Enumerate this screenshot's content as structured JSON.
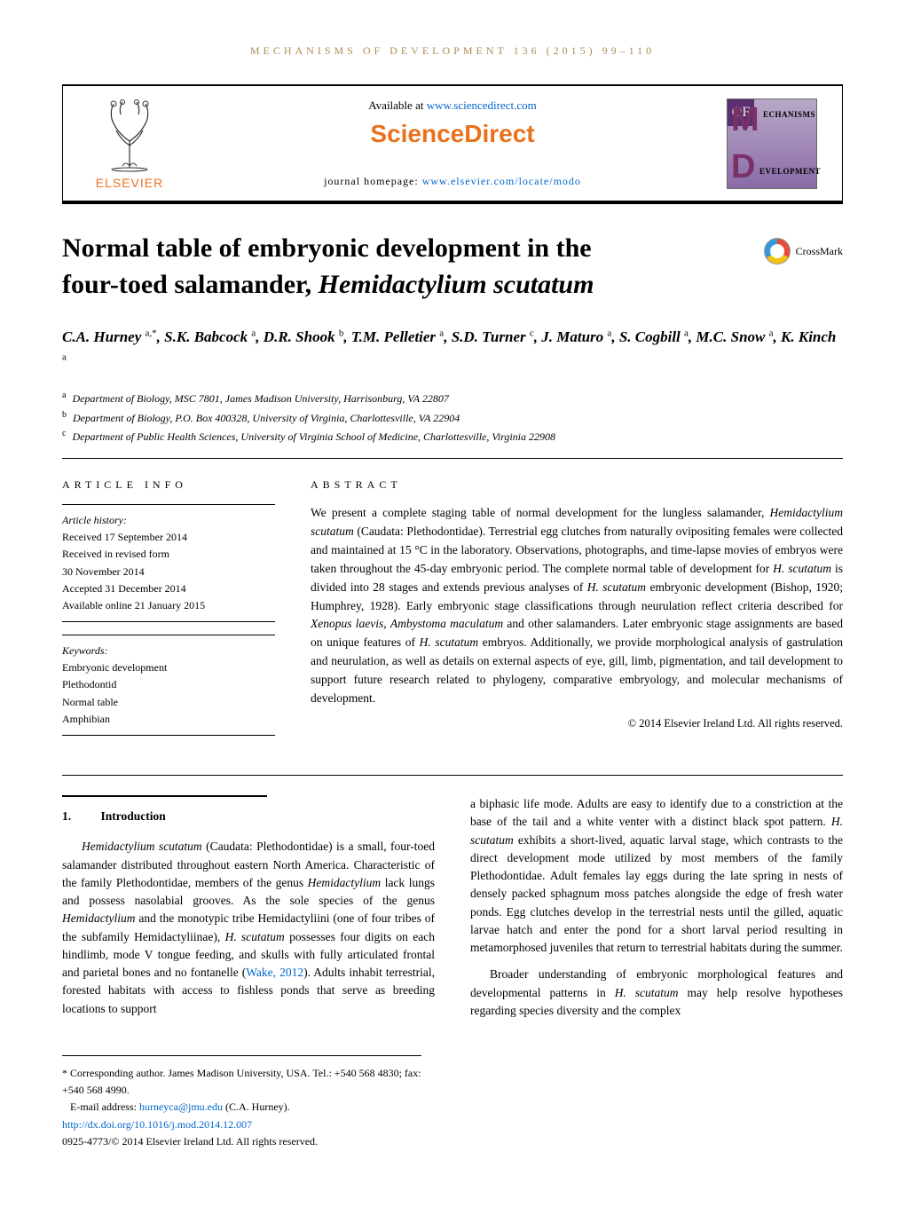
{
  "running_header": "MECHANISMS OF DEVELOPMENT 136 (2015) 99–110",
  "top_box": {
    "available_prefix": "Available at ",
    "available_link": "www.sciencedirect.com",
    "brand": "ScienceDirect",
    "homepage_prefix": "journal homepage: ",
    "homepage_link": "www.elsevier.com/locate/modo",
    "publisher_name": "ELSEVIER",
    "journal_words": {
      "m": "ECHANISMS",
      "o": "OF",
      "d": "EVELOPMENT"
    }
  },
  "title": {
    "line1": "Normal table of embryonic development in the",
    "line2_plain": "four-toed salamander, ",
    "line2_italic": "Hemidactylium scutatum"
  },
  "crossmark_label": "CrossMark",
  "authors_html": "C.A. Hurney <sup>a,*</sup>, S.K. Babcock <sup>a</sup>, D.R. Shook <sup>b</sup>, T.M. Pelletier <sup>a</sup>, S.D. Turner <sup>c</sup>, J. Maturo <sup>a</sup>, S. Cogbill <sup>a</sup>, M.C. Snow <sup>a</sup>, K. Kinch <sup>a</sup>",
  "affiliations": [
    {
      "sup": "a",
      "text": "Department of Biology, MSC 7801, James Madison University, Harrisonburg, VA 22807"
    },
    {
      "sup": "b",
      "text": "Department of Biology, P.O. Box 400328, University of Virginia, Charlottesville, VA 22904"
    },
    {
      "sup": "c",
      "text": "Department of Public Health Sciences, University of Virginia School of Medicine, Charlottesville, Virginia 22908"
    }
  ],
  "labels": {
    "article_info": "ARTICLE INFO",
    "abstract": "ABSTRACT"
  },
  "history": {
    "heading": "Article history:",
    "lines": [
      "Received 17 September 2014",
      "Received in revised form",
      "30 November 2014",
      "Accepted 31 December 2014",
      "Available online 21 January 2015"
    ]
  },
  "keywords": {
    "heading": "Keywords:",
    "items": [
      "Embryonic development",
      "Plethodontid",
      "Normal table",
      "Amphibian"
    ]
  },
  "abstract_text": "We present a complete staging table of normal development for the lungless salamander, Hemidactylium scutatum (Caudata: Plethodontidae). Terrestrial egg clutches from naturally ovipositing females were collected and maintained at 15 °C in the laboratory. Observations, photographs, and time-lapse movies of embryos were taken throughout the 45-day embryonic period. The complete normal table of development for H. scutatum is divided into 28 stages and extends previous analyses of H. scutatum embryonic development (Bishop, 1920; Humphrey, 1928). Early embryonic stage classifications through neurulation reflect criteria described for Xenopus laevis, Ambystoma maculatum and other salamanders. Later embryonic stage assignments are based on unique features of H. scutatum embryos. Additionally, we provide morphological analysis of gastrulation and neurulation, as well as details on external aspects of eye, gill, limb, pigmentation, and tail development to support future research related to phylogeny, comparative embryology, and molecular mechanisms of development.",
  "abstract_copyright": "© 2014 Elsevier Ireland Ltd. All rights reserved.",
  "section1": {
    "num": "1.",
    "title": "Introduction"
  },
  "col1_p1_pre": "Hemidactylium scutatum",
  "col1_p1_rest": " (Caudata: Plethodontidae) is a small, four-toed salamander distributed throughout eastern North America. Characteristic of the family Plethodontidae, members of the genus Hemidactylium lack lungs and possess nasolabial grooves. As the sole species of the genus Hemidactylium and the monotypic tribe Hemidactyliini (one of four tribes of the subfamily Hemidactyliinae), H. scutatum possesses four digits on each hindlimb, mode V tongue feeding, and skulls with fully articulated frontal and parietal bones and no fontanelle (",
  "col1_p1_cite": "Wake, 2012",
  "col1_p1_tail": "). Adults inhabit terrestrial, forested habitats with access to fishless ponds that serve as breeding locations to support",
  "col2_p1": "a biphasic life mode. Adults are easy to identify due to a constriction at the base of the tail and a white venter with a distinct black spot pattern. H. scutatum exhibits a short-lived, aquatic larval stage, which contrasts to the direct development mode utilized by most members of the family Plethodontidae. Adult females lay eggs during the late spring in nests of densely packed sphagnum moss patches alongside the edge of fresh water ponds. Egg clutches develop in the terrestrial nests until the gilled, aquatic larvae hatch and enter the pond for a short larval period resulting in metamorphosed juveniles that return to terrestrial habitats during the summer.",
  "col2_p2": "Broader understanding of embryonic morphological features and developmental patterns in H. scutatum may help resolve hypotheses regarding species diversity and the complex",
  "footnotes": {
    "corr": "* Corresponding author. James Madison University, USA. Tel.: +540 568 4830; fax: +540 568 4990.",
    "email_label": "E-mail address: ",
    "email_link": "hurneyca@jmu.edu",
    "email_tail": " (C.A. Hurney).",
    "doi": "http://dx.doi.org/10.1016/j.mod.2014.12.007",
    "issn": "0925-4773/© 2014 Elsevier Ireland Ltd. All rights reserved."
  },
  "colors": {
    "accent_orange": "#e9711c",
    "link_blue": "#0066cc",
    "header_tan": "#b08a56"
  }
}
